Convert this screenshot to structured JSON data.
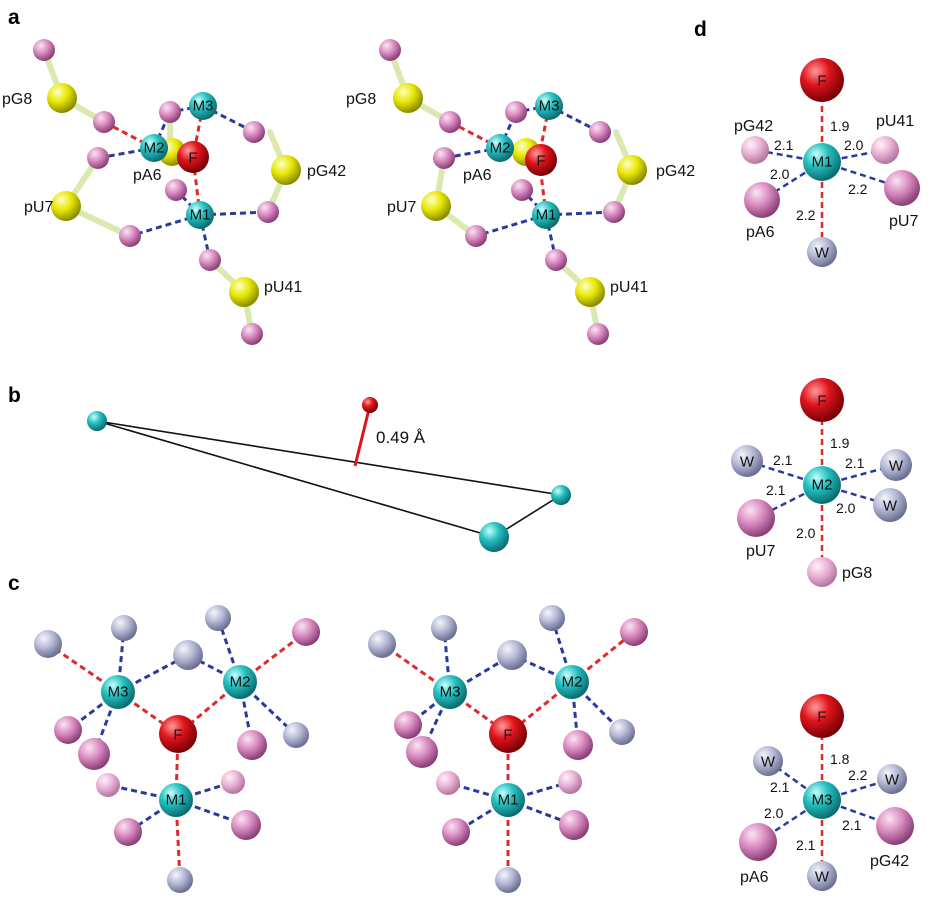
{
  "panels": {
    "a": "a",
    "b": "b",
    "c": "c",
    "d": "d"
  },
  "labels": {
    "pG8": "pG8",
    "pA6": "pA6",
    "pU7": "pU7",
    "pG42": "pG42",
    "pU41": "pU41",
    "M1": "M1",
    "M2": "M2",
    "M3": "M3",
    "F": "F",
    "W": "W"
  },
  "b_distance": "0.49 Å",
  "d_M1": {
    "F": "1.9",
    "pG42": "2.1",
    "pU41": "2.0",
    "pA6": "2.0",
    "pU7": "2.2",
    "W": "2.2"
  },
  "d_M2": {
    "F": "1.9",
    "W_ul": "2.1",
    "W_ur": "2.1",
    "pU7": "2.1",
    "W_r": "2.0",
    "pG8": "2.0"
  },
  "d_M3": {
    "F": "1.8",
    "W_ul": "2.1",
    "W_ur": "2.2",
    "pA6": "2.0",
    "pG42": "2.1",
    "W_b": "2.1"
  },
  "colors": {
    "metal": "#20b8b8",
    "fluoride": "#e0141c",
    "oxygen": "#d98bc0",
    "water": "#b4b8d4",
    "phosphorus": "#e6e600",
    "metal_bond": "#2a3a9c",
    "f_bond": "#e02a2a"
  }
}
